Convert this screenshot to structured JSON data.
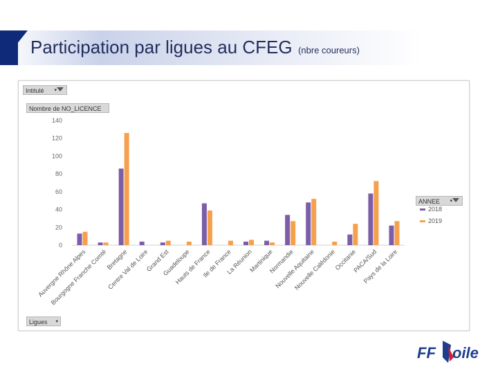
{
  "title": {
    "main": "Participation par ligues au CFEG",
    "sub": "(nbre coureurs)"
  },
  "filters": {
    "intitule": "Intitulé",
    "measure": "Nombre de NO_LICENCE",
    "axis_field": "Ligues",
    "legend_field": "ANNEE"
  },
  "logo": {
    "text_ff": "FF",
    "text_voile": "oile"
  },
  "colors": {
    "s2018": "#7b5ea7",
    "s2019": "#f6a04d",
    "title_accent": "#0f2a78"
  },
  "chart_data": {
    "type": "bar",
    "title": "",
    "xlabel": "",
    "ylabel": "",
    "ylim": [
      0,
      140
    ],
    "yticks": [
      0,
      20,
      40,
      60,
      80,
      100,
      120,
      140
    ],
    "categories": [
      "Auvergne Rhône Alpes",
      "Bourgogne Franche Comté",
      "Bretagne",
      "Centre Val de Loire",
      "Grand Est",
      "Guadeloupe",
      "Hauts de France",
      "Ile de France",
      "La Réunion",
      "Martinique",
      "Normandie",
      "Nouvelle Aquitaine",
      "Nouvelle Calédonie",
      "Occitanie",
      "PACA/Sud",
      "Pays de la Loire"
    ],
    "series": [
      {
        "name": "2018",
        "values": [
          13,
          3,
          86,
          4,
          3,
          0,
          47,
          0,
          4,
          5,
          34,
          48,
          0,
          12,
          58,
          22
        ]
      },
      {
        "name": "2019",
        "values": [
          15,
          3,
          126,
          0,
          5,
          4,
          39,
          5,
          6,
          3,
          27,
          52,
          4,
          24,
          72,
          27
        ]
      }
    ],
    "legend_position": "right",
    "grid": false
  }
}
